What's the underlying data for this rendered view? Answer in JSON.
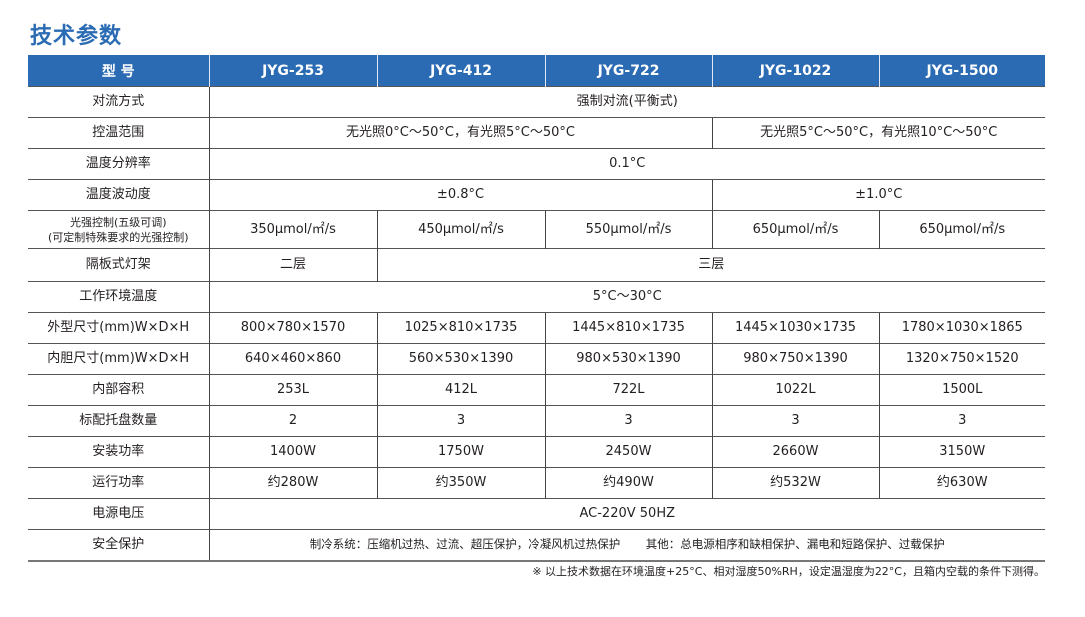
{
  "title": "技术参数",
  "header": [
    "型 号",
    "JYG-253",
    "JYG-412",
    "JYG-722",
    "JYG-1022",
    "JYG-1500"
  ],
  "rows": {
    "convection": {
      "label": "对流方式",
      "value": "强制对流(平衡式)"
    },
    "temp_range": {
      "label": "控温范围",
      "a": "无光照0°C～50°C，有光照5°C～50°C",
      "b": "无光照5°C～50°C，有光照10°C～50°C"
    },
    "resolution": {
      "label": "温度分辨率",
      "value": "0.1°C"
    },
    "fluctuation": {
      "label": "温度波动度",
      "a": "±0.8°C",
      "b": "±1.0°C"
    },
    "light": {
      "label1": "光强控制(五级可调)",
      "label2": "(可定制特殊要求的光强控制)",
      "values": [
        "350μmol/㎡/s",
        "450μmol/㎡/s",
        "550μmol/㎡/s",
        "650μmol/㎡/s",
        "650μmol/㎡/s"
      ]
    },
    "shelf": {
      "label": "隔板式灯架",
      "a": "二层",
      "b": "三层"
    },
    "env_temp": {
      "label": "工作环境温度",
      "value": "5°C～30°C"
    },
    "outer": {
      "label": "外型尺寸(mm)W×D×H",
      "values": [
        "800×780×1570",
        "1025×810×1735",
        "1445×810×1735",
        "1445×1030×1735",
        "1780×1030×1865"
      ]
    },
    "inner": {
      "label": "内胆尺寸(mm)W×D×H",
      "values": [
        "640×460×860",
        "560×530×1390",
        "980×530×1390",
        "980×750×1390",
        "1320×750×1520"
      ]
    },
    "volume": {
      "label": "内部容积",
      "values": [
        "253L",
        "412L",
        "722L",
        "1022L",
        "1500L"
      ]
    },
    "trays": {
      "label": "标配托盘数量",
      "values": [
        "2",
        "3",
        "3",
        "3",
        "3"
      ]
    },
    "install_power": {
      "label": "安装功率",
      "values": [
        "1400W",
        "1750W",
        "2450W",
        "2660W",
        "3150W"
      ]
    },
    "run_power": {
      "label": "运行功率",
      "values": [
        "约280W",
        "约350W",
        "约490W",
        "约532W",
        "约630W"
      ]
    },
    "voltage": {
      "label": "电源电压",
      "value": "AC-220V 50HZ"
    },
    "safety": {
      "label": "安全保护",
      "a": "制冷系统：压缩机过热、过流、超压保护，冷凝风机过热保护",
      "b": "其他：总电源相序和缺相保护、漏电和短路保护、过载保护"
    }
  },
  "note": "※ 以上技术数据在环境温度+25°C、相对湿度50%RH，设定温湿度为22°C，且箱内空载的条件下测得。"
}
